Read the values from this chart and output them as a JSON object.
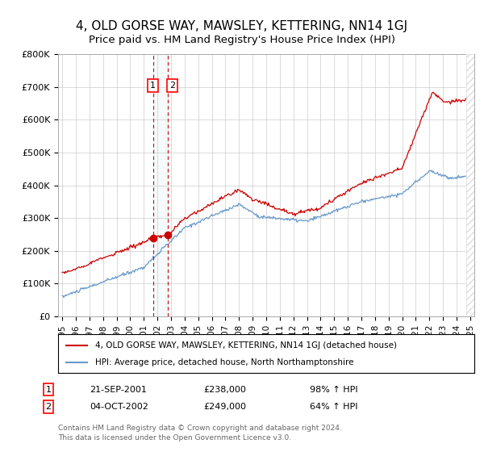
{
  "title": "4, OLD GORSE WAY, MAWSLEY, KETTERING, NN14 1GJ",
  "subtitle": "Price paid vs. HM Land Registry's House Price Index (HPI)",
  "ylim": [
    0,
    800000
  ],
  "yticks": [
    0,
    100000,
    200000,
    300000,
    400000,
    500000,
    600000,
    700000,
    800000
  ],
  "ytick_labels": [
    "£0",
    "£100K",
    "£200K",
    "£300K",
    "£400K",
    "£500K",
    "£600K",
    "£700K",
    "£800K"
  ],
  "title_fontsize": 11,
  "subtitle_fontsize": 9.5,
  "background_color": "#ffffff",
  "grid_color": "#cccccc",
  "hpi_color": "#6699cc",
  "price_color": "#cc0000",
  "marker_color": "#cc0000",
  "transaction1_date": "21-SEP-2001",
  "transaction1_price": 238000,
  "transaction1_hpi": "98% ↑ HPI",
  "transaction1_x": 2001.72,
  "transaction1_y": 238000,
  "transaction2_date": "04-OCT-2002",
  "transaction2_price": 249000,
  "transaction2_hpi": "64% ↑ HPI",
  "transaction2_x": 2002.78,
  "transaction2_y": 249000,
  "legend_label_price": "4, OLD GORSE WAY, MAWSLEY, KETTERING, NN14 1GJ (detached house)",
  "legend_label_hpi": "HPI: Average price, detached house, North Northamptonshire",
  "footer": "Contains HM Land Registry data © Crown copyright and database right 2024.\nThis data is licensed under the Open Government Licence v3.0.",
  "shade_start": 2001.72,
  "shade_end": 2002.78,
  "xmin": 1994.7,
  "xmax": 2025.3,
  "xticks": [
    1995,
    1996,
    1997,
    1998,
    1999,
    2000,
    2001,
    2002,
    2003,
    2004,
    2005,
    2006,
    2007,
    2008,
    2009,
    2010,
    2011,
    2012,
    2013,
    2014,
    2015,
    2016,
    2017,
    2018,
    2019,
    2020,
    2021,
    2022,
    2023,
    2024,
    2025
  ]
}
